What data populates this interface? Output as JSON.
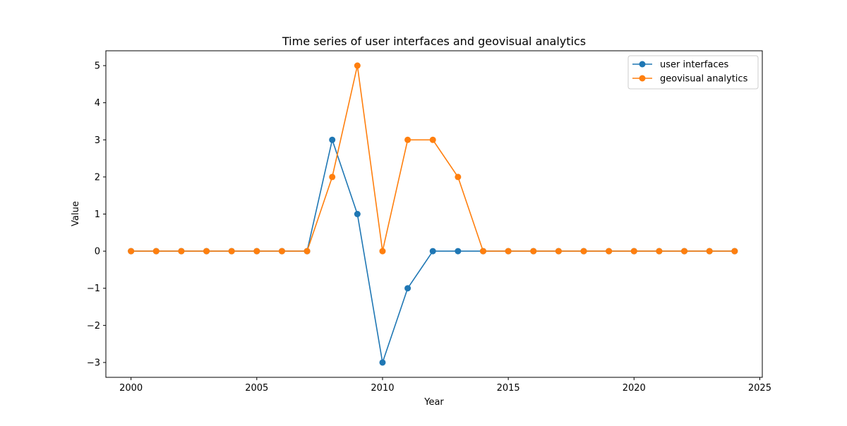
{
  "chart_data": {
    "type": "line",
    "title": "Time series of user interfaces and geovisual analytics",
    "xlabel": "Year",
    "ylabel": "Value",
    "xlim": [
      1999,
      2025.1
    ],
    "ylim": [
      -3.4,
      5.4
    ],
    "xticks": [
      2000,
      2005,
      2010,
      2015,
      2020,
      2025
    ],
    "xtick_labels": [
      "2000",
      "2005",
      "2010",
      "2015",
      "2020",
      "2025"
    ],
    "yticks": [
      -3,
      -2,
      -1,
      0,
      1,
      2,
      3,
      4,
      5
    ],
    "ytick_labels": [
      "−3",
      "−2",
      "−1",
      "0",
      "1",
      "2",
      "3",
      "4",
      "5"
    ],
    "grid": false,
    "legend_position": "top-right",
    "x": [
      2000,
      2001,
      2002,
      2003,
      2004,
      2005,
      2006,
      2007,
      2008,
      2009,
      2010,
      2011,
      2012,
      2013,
      2014,
      2015,
      2016,
      2017,
      2018,
      2019,
      2020,
      2021,
      2022,
      2023,
      2024
    ],
    "series": [
      {
        "name": "user interfaces",
        "color": "#1f77b4",
        "values": [
          0,
          0,
          0,
          0,
          0,
          0,
          0,
          0,
          3,
          1,
          -3,
          -1,
          0,
          0,
          0,
          0,
          0,
          0,
          0,
          0,
          0,
          0,
          0,
          0,
          0
        ]
      },
      {
        "name": "geovisual analytics",
        "color": "#ff7f0e",
        "values": [
          0,
          0,
          0,
          0,
          0,
          0,
          0,
          0,
          2,
          5,
          0,
          3,
          3,
          2,
          0,
          0,
          0,
          0,
          0,
          0,
          0,
          0,
          0,
          0,
          0
        ]
      }
    ]
  }
}
